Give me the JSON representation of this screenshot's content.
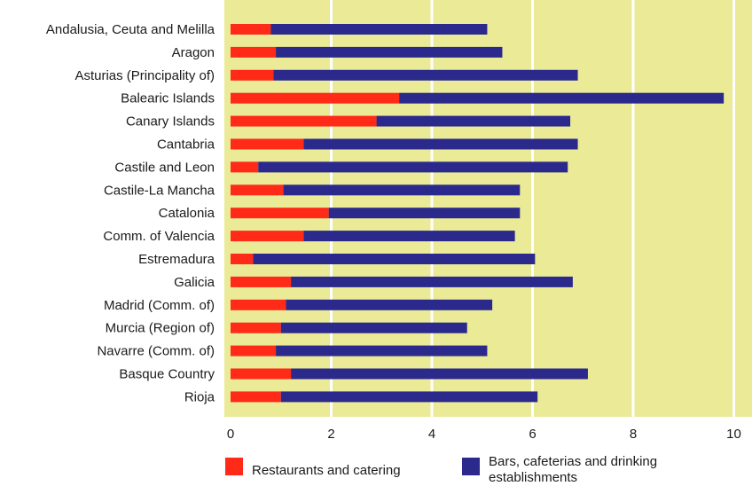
{
  "chart_data": {
    "type": "bar",
    "orientation": "horizontal",
    "stacked": true,
    "title": "",
    "xlabel": "",
    "ylabel": "",
    "xlim": [
      0,
      10
    ],
    "xticks": [
      0,
      2,
      4,
      6,
      8,
      10
    ],
    "grid": "vertical white gridlines",
    "background_color": "#eaea97",
    "legend_position": "bottom",
    "categories": [
      "Andalusia, Ceuta and Melilla",
      "Aragon",
      "Asturias (Principality of)",
      "Balearic Islands",
      "Canary Islands",
      "Cantabria",
      "Castile and Leon",
      "Castile-La Mancha",
      "Catalonia",
      "Comm. of Valencia",
      "Estremadura",
      "Galicia",
      "Madrid (Comm. of)",
      "Murcia (Region of)",
      "Navarre (Comm. of)",
      "Basque Country",
      "Rioja"
    ],
    "series": [
      {
        "name": "Restaurants and catering",
        "color": "#ff2a17",
        "values": [
          0.8,
          0.9,
          0.85,
          3.35,
          2.9,
          1.45,
          0.55,
          1.05,
          1.95,
          1.45,
          0.45,
          1.2,
          1.1,
          1.0,
          0.9,
          1.2,
          1.0
        ]
      },
      {
        "name": "Bars, cafeterias and drinking establishments",
        "color": "#2b2a8c",
        "values": [
          4.3,
          4.5,
          6.05,
          6.45,
          3.85,
          5.45,
          6.15,
          4.7,
          3.8,
          4.2,
          5.6,
          5.6,
          4.1,
          3.7,
          4.2,
          5.9,
          5.1
        ]
      }
    ]
  }
}
